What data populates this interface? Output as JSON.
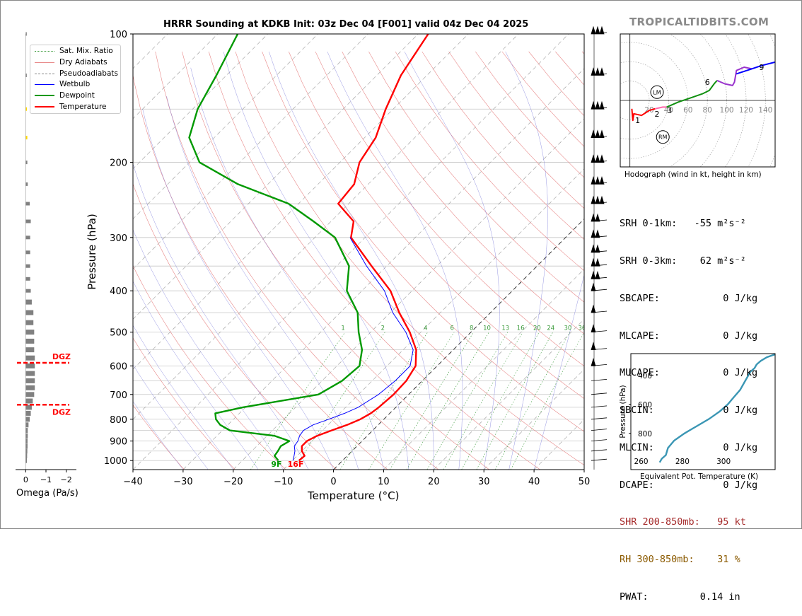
{
  "brand": "TROPICALTIDBITS.COM",
  "colors": {
    "temperature": "#ff0000",
    "dewpoint": "#009900",
    "wetbulb": "#0000ff",
    "dry": "#e88a8a",
    "pseudo": "#888888",
    "mix": "#3a9a3a",
    "hodo_axis": "#000000",
    "thetae": "#3a96b4",
    "srh_accent": "#a52a2a",
    "rh_accent": "#8b5a00"
  },
  "chart_data": [
    {
      "type": "line",
      "title": "HRRR Sounding at KDKB Init: 03z Dec 04 [F001] valid 04z Dec 04 2025",
      "xlabel": "Temperature (°C)",
      "ylabel": "Pressure (hPa)",
      "xlim": [
        -40,
        50
      ],
      "ylim": [
        1050,
        100
      ],
      "skew_deg": 45,
      "x_ticks": [
        "−40",
        "−30",
        "−20",
        "−10",
        "0",
        "10",
        "20",
        "30",
        "40",
        "50"
      ],
      "y_ticks": [
        "100",
        "200",
        "300",
        "400",
        "500",
        "600",
        "700",
        "800",
        "900",
        "1000"
      ],
      "legend": [
        "Sat. Mix. Ratio",
        "Dry Adiabats",
        "Pseudoadiabats",
        "Wetbulb",
        "Dewpoint",
        "Temperature"
      ],
      "mixing_ratio_labels": [
        "1",
        "2",
        "4",
        "6",
        "8",
        "10",
        "13",
        "16",
        "20",
        "24",
        "30",
        "36"
      ],
      "surface_labels": {
        "dewpoint": "9F",
        "temperature": "16F"
      },
      "series": [
        {
          "name": "Temperature",
          "p": [
            1000,
            975,
            950,
            925,
            900,
            875,
            850,
            825,
            800,
            775,
            750,
            700,
            650,
            600,
            550,
            500,
            450,
            400,
            350,
            300,
            275,
            250,
            225,
            200,
            175,
            150,
            125,
            100
          ],
          "t": [
            -8.7,
            -8.5,
            -10.0,
            -11.0,
            -11.0,
            -10.0,
            -8.2,
            -6.2,
            -4.7,
            -3.8,
            -3.4,
            -3.0,
            -3.2,
            -4.3,
            -7.4,
            -12.2,
            -18.2,
            -24.3,
            -33.0,
            -42.8,
            -45.5,
            -52.1,
            -52.8,
            -56.1,
            -57.8,
            -61.5,
            -65.2,
            -68.0
          ]
        },
        {
          "name": "Dewpoint",
          "p": [
            1000,
            975,
            950,
            925,
            900,
            875,
            850,
            825,
            800,
            775,
            750,
            700,
            650,
            600,
            550,
            500,
            450,
            400,
            350,
            300,
            275,
            250,
            225,
            200,
            175,
            150,
            125,
            100
          ],
          "t": [
            -12.8,
            -14.5,
            -14.8,
            -15.2,
            -14.5,
            -18.5,
            -28.5,
            -31.5,
            -33.5,
            -34.8,
            -30.5,
            -18.0,
            -16.0,
            -15.5,
            -18.2,
            -22.4,
            -26.5,
            -33.0,
            -37.5,
            -46.0,
            -53.5,
            -62.0,
            -76.0,
            -88.0,
            -95.0,
            -99.0,
            -102.0,
            -106.0
          ]
        },
        {
          "name": "Wetbulb",
          "p": [
            1000,
            975,
            950,
            925,
            900,
            875,
            850,
            825,
            800,
            775,
            750,
            700,
            650,
            600,
            550,
            500,
            450,
            400,
            350,
            300
          ],
          "t": [
            -9.9,
            -10.6,
            -11.4,
            -12.5,
            -12.8,
            -13.5,
            -13.8,
            -13.0,
            -11.0,
            -9.0,
            -7.5,
            -6.0,
            -5.4,
            -5.4,
            -8.0,
            -13.0,
            -19.5,
            -25.5,
            -34.0,
            -43.0
          ]
        }
      ]
    },
    {
      "type": "line",
      "title": "Hodograph (wind in kt, height in km)",
      "xlim": [
        -10,
        150
      ],
      "ylim": [
        -40,
        40
      ],
      "x_ticks": [
        "20",
        "40",
        "60",
        "80",
        "100",
        "120",
        "140"
      ],
      "height_labels": [
        "1",
        "2",
        "3",
        "6",
        "9"
      ],
      "markers": [
        "LM",
        "RM"
      ],
      "segments": [
        {
          "color": "#ff0000",
          "u": [
            2,
            3,
            4,
            12,
            20,
            26
          ],
          "v": [
            -5,
            -12,
            -8,
            -9,
            -6,
            -5
          ]
        },
        {
          "color": "#ff66aa",
          "u": [
            26,
            34,
            38
          ],
          "v": [
            -5,
            -4,
            -4
          ]
        },
        {
          "color": "#109010",
          "u": [
            38,
            50,
            65,
            75,
            82,
            87,
            90
          ],
          "v": [
            -4,
            -1,
            2,
            4,
            6,
            10,
            12
          ]
        },
        {
          "color": "#9933cc",
          "u": [
            90,
            98,
            106,
            108,
            110,
            118,
            126
          ],
          "v": [
            12,
            10,
            9,
            11,
            18,
            20,
            19
          ]
        },
        {
          "color": "#0000ff",
          "u": [
            110,
            126,
            136,
            150
          ],
          "v": [
            16,
            19,
            21,
            23
          ]
        }
      ],
      "marker_uv": {
        "LM": [
          28,
          5
        ],
        "RM": [
          34,
          -22
        ]
      }
    },
    {
      "type": "line",
      "xlabel": "Equivalent Pot. Temperature (K)",
      "ylabel": "Pressure (hPa)",
      "xlim": [
        255,
        325
      ],
      "ylim": [
        1050,
        250
      ],
      "x_ticks": [
        "260",
        "280",
        "300"
      ],
      "y_ticks": [
        "400",
        "600",
        "800"
      ],
      "series": [
        {
          "name": "Theta-E",
          "p": [
            1000,
            975,
            950,
            900,
            850,
            800,
            775,
            750,
            700,
            650,
            600,
            550,
            500,
            450,
            400,
            375,
            350,
            325,
            300,
            275,
            250
          ],
          "k": [
            269,
            270,
            272,
            273,
            276,
            281,
            284,
            287,
            293,
            298,
            302,
            305,
            308,
            310,
            312,
            313,
            315,
            316,
            318,
            321,
            326
          ]
        }
      ]
    },
    {
      "type": "bar",
      "xlabel": "Omega (Pa/s)",
      "xlim": [
        0.5,
        -2.5
      ],
      "x_ticks": [
        "0",
        "−1",
        "−2"
      ],
      "p": [
        1000,
        975,
        950,
        925,
        900,
        875,
        850,
        825,
        800,
        775,
        750,
        725,
        700,
        675,
        650,
        625,
        600,
        575,
        550,
        525,
        500,
        475,
        450,
        425,
        400,
        375,
        350,
        325,
        300,
        275,
        250,
        225,
        200,
        175,
        150,
        125,
        100
      ],
      "omega": [
        -0.06,
        -0.07,
        -0.08,
        -0.09,
        -0.09,
        -0.1,
        -0.1,
        -0.14,
        -0.2,
        -0.25,
        -0.3,
        -0.35,
        -0.42,
        -0.45,
        -0.45,
        -0.45,
        -0.45,
        -0.45,
        -0.42,
        -0.42,
        -0.42,
        -0.38,
        -0.38,
        -0.3,
        -0.25,
        -0.22,
        -0.22,
        -0.22,
        -0.22,
        -0.25,
        -0.2,
        -0.1,
        -0.08,
        -0.08,
        -0.06,
        -0.05,
        -0.05
      ],
      "dgz_labels": [
        "DGZ",
        "DGZ"
      ],
      "dgz_p": [
        590,
        740
      ]
    }
  ],
  "stats": [
    {
      "label": "SRH 0-1km:",
      "value": "   -55 m²s⁻²",
      "style": "normal"
    },
    {
      "label": "SRH 0-3km:",
      "value": "    62 m²s⁻²",
      "style": "normal"
    },
    {
      "label": "SBCAPE:",
      "value": "           0 J/kg",
      "style": "normal"
    },
    {
      "label": "MLCAPE:",
      "value": "           0 J/kg",
      "style": "normal"
    },
    {
      "label": "MUCAPE:",
      "value": "           0 J/kg",
      "style": "normal"
    },
    {
      "label": "SBCIN:",
      "value": "            0 J/kg",
      "style": "normal"
    },
    {
      "label": "MLCIN:",
      "value": "            0 J/kg",
      "style": "normal"
    },
    {
      "label": "DCAPE:",
      "value": "            0 J/kg",
      "style": "normal"
    },
    {
      "label": "SHR 200-850mb:",
      "value": "   95 kt",
      "style": "srh"
    },
    {
      "label": "RH 300-850mb:",
      "value": "    31 %",
      "style": "rh"
    },
    {
      "label": "PWAT:",
      "value": "         0.14 in",
      "style": "normal"
    }
  ]
}
